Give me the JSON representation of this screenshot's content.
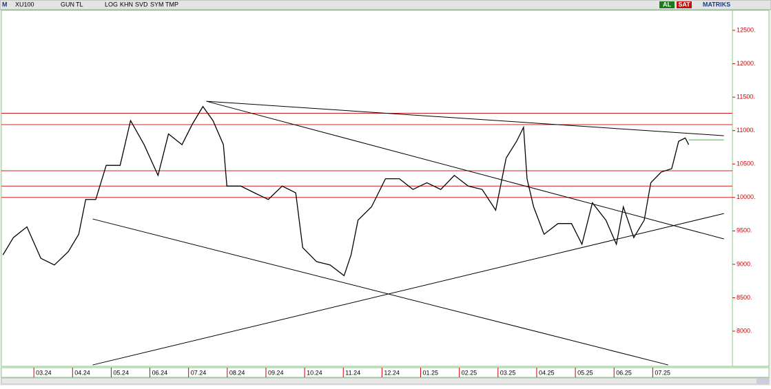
{
  "toolbar": {
    "buttons": [
      "GUN",
      "TL",
      "LOG",
      "KHN",
      "SVD",
      "SYM",
      "TMP"
    ],
    "buy": "AL",
    "sell": "SAT",
    "brand": "MATRIKS"
  },
  "chart_data": {
    "type": "line",
    "series": [
      {
        "name": "XU100",
        "color": "#000000",
        "x": [
          -0.8,
          -0.53,
          -0.18,
          0.18,
          0.53,
          0.89,
          1.16,
          1.34,
          1.6,
          1.87,
          2.23,
          2.5,
          2.85,
          3.21,
          3.48,
          3.83,
          4.1,
          4.37,
          4.63,
          4.9,
          4.99,
          5.35,
          5.7,
          6.06,
          6.42,
          6.77,
          6.95,
          7.31,
          7.66,
          8.02,
          8.2,
          8.38,
          8.73,
          9.09,
          9.45,
          9.8,
          10.16,
          10.52,
          10.87,
          11.23,
          11.59,
          11.94,
          12.21,
          12.48,
          12.66,
          12.75,
          12.92,
          13.19,
          13.55,
          13.9,
          14.17,
          14.44,
          14.79,
          15.06,
          15.24,
          15.51,
          15.78,
          15.95,
          16.22,
          16.49,
          16.67,
          16.84,
          16.93
        ],
        "values": [
          9140,
          9400,
          9560,
          9090,
          8990,
          9190,
          9450,
          9970,
          9970,
          10480,
          10480,
          11150,
          10790,
          10330,
          10950,
          10790,
          11100,
          11360,
          11150,
          10790,
          10170,
          10170,
          10070,
          9970,
          10170,
          10070,
          9250,
          9040,
          8990,
          8830,
          9140,
          9660,
          9860,
          10280,
          10280,
          10120,
          10220,
          10120,
          10330,
          10170,
          10120,
          9810,
          10590,
          10840,
          11050,
          10280,
          9860,
          9450,
          9610,
          9610,
          9300,
          9920,
          9660,
          9300,
          9860,
          9400,
          9660,
          10220,
          10380,
          10430,
          10840,
          10890,
          10790
        ]
      }
    ],
    "hlines": {
      "color": "#d02020",
      "values": [
        11260,
        11090,
        10400,
        10170,
        10000
      ]
    },
    "trendlines": {
      "color": "#000000",
      "lines": [
        {
          "x": [
            4.46,
            17.84
          ],
          "y": [
            11439,
            10924
          ]
        },
        {
          "x": [
            4.46,
            17.84
          ],
          "y": [
            11439,
            9380
          ]
        },
        {
          "x": [
            1.52,
            16.4
          ],
          "y": [
            9678,
            7495
          ]
        },
        {
          "x": [
            1.52,
            17.84
          ],
          "y": [
            7495,
            9760
          ]
        }
      ]
    },
    "marker": {
      "color": "#33bb33",
      "x": [
        16.93,
        17.84
      ],
      "y": [
        10862,
        10862
      ]
    },
    "xlim": [
      -0.84,
      18.06
    ],
    "ylim": [
      7475,
      12799
    ],
    "xticks": [
      {
        "value": 0,
        "label": "03.24"
      },
      {
        "value": 1,
        "label": "04.24"
      },
      {
        "value": 2,
        "label": "05.24"
      },
      {
        "value": 3,
        "label": "06.24"
      },
      {
        "value": 4,
        "label": "07.24"
      },
      {
        "value": 5,
        "label": "08.24"
      },
      {
        "value": 6,
        "label": "09.24"
      },
      {
        "value": 7,
        "label": "10.24"
      },
      {
        "value": 8,
        "label": "11.24"
      },
      {
        "value": 9,
        "label": "12.24"
      },
      {
        "value": 10,
        "label": "01.25"
      },
      {
        "value": 11,
        "label": "02.25"
      },
      {
        "value": 12,
        "label": "03.25"
      },
      {
        "value": 13,
        "label": "04.25"
      },
      {
        "value": 14,
        "label": "05.25"
      },
      {
        "value": 15,
        "label": "06.25"
      },
      {
        "value": 16,
        "label": "07.25"
      }
    ],
    "yticks": [
      {
        "value": 8000,
        "label": "8000."
      },
      {
        "value": 8500,
        "label": "8500."
      },
      {
        "value": 9000,
        "label": "9000."
      },
      {
        "value": 9500,
        "label": "9500."
      },
      {
        "value": 10000,
        "label": "10000."
      },
      {
        "value": 10500,
        "label": "10500."
      },
      {
        "value": 11000,
        "label": "11000."
      },
      {
        "value": 11500,
        "label": "11500."
      },
      {
        "value": 12000,
        "label": "12000."
      },
      {
        "value": 12500,
        "label": "12500."
      }
    ]
  }
}
